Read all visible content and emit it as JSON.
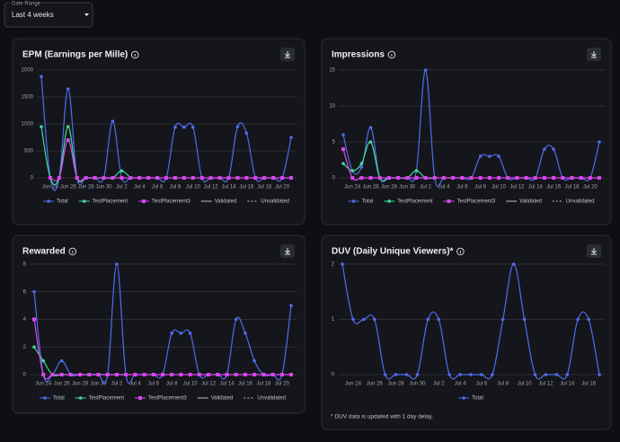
{
  "date_range": {
    "label": "Date Range",
    "value": "Last 4 weeks"
  },
  "chart_data": [
    {
      "type": "line",
      "title": "EPM (Earnings per Mille)",
      "categories": [
        null,
        "Jun 24",
        null,
        "Jun 26",
        null,
        "Jun 28",
        null,
        "Jun 30",
        null,
        "Jul 2",
        null,
        "Jul 4",
        null,
        "Jul 6",
        null,
        "Jul 8",
        null,
        "Jul 10",
        null,
        "Jul 12",
        null,
        "Jul 14",
        null,
        "Jul 16",
        null,
        "Jul 18",
        null,
        "Jul 20",
        null
      ],
      "series": [
        {
          "name": "Total",
          "color": "#4f6bed",
          "values": [
            1880,
            0,
            0,
            1650,
            0,
            0,
            0,
            0,
            1050,
            0,
            0,
            0,
            0,
            0,
            0,
            940,
            940,
            940,
            0,
            0,
            0,
            0,
            950,
            830,
            0,
            0,
            0,
            0,
            750
          ]
        },
        {
          "name": "TestPlacement",
          "color": "#3ddc97",
          "values": [
            950,
            0,
            0,
            950,
            0,
            0,
            0,
            0,
            0,
            130,
            0,
            null,
            null,
            null,
            null,
            null,
            null,
            null,
            null,
            null,
            null,
            null,
            null,
            null,
            null,
            null,
            null,
            null,
            null
          ]
        },
        {
          "name": "TestPlacement3",
          "color": "#d946ef",
          "values": [
            null,
            0,
            0,
            700,
            0,
            0,
            0,
            0,
            0,
            0,
            0,
            0,
            0,
            0,
            0,
            0,
            0,
            0,
            0,
            0,
            0,
            0,
            0,
            0,
            0,
            0,
            0,
            0,
            0
          ]
        }
      ],
      "line_styles": [
        "Validated",
        "Unvalidated"
      ],
      "ylim": [
        0,
        2000
      ],
      "yticks": [
        0,
        500,
        1000,
        1500,
        2000
      ],
      "grid": true
    },
    {
      "type": "line",
      "title": "Impressions",
      "categories": [
        null,
        "Jun 24",
        null,
        "Jun 26",
        null,
        "Jun 28",
        null,
        "Jun 30",
        null,
        "Jul 2",
        null,
        "Jul 4",
        null,
        "Jul 6",
        null,
        "Jul 8",
        null,
        "Jul 10",
        null,
        "Jul 12",
        null,
        "Jul 14",
        null,
        "Jul 16",
        null,
        "Jul 18",
        null,
        "Jul 20",
        null
      ],
      "series": [
        {
          "name": "Total",
          "color": "#4f6bed",
          "values": [
            6,
            1,
            1.5,
            7,
            0,
            0,
            0,
            0,
            1,
            15,
            0,
            0,
            0,
            0,
            0,
            3,
            3,
            3,
            0,
            0,
            0,
            0,
            4,
            4,
            0,
            0,
            0,
            0,
            5
          ]
        },
        {
          "name": "TestPlacement",
          "color": "#3ddc97",
          "values": [
            2,
            1,
            2,
            5,
            0,
            0,
            0,
            0,
            1,
            0,
            0,
            null,
            null,
            null,
            null,
            null,
            null,
            null,
            null,
            null,
            null,
            null,
            null,
            null,
            null,
            null,
            null,
            null,
            null
          ]
        },
        {
          "name": "TestPlacement3",
          "color": "#d946ef",
          "values": [
            4,
            0,
            0,
            0,
            0,
            0,
            0,
            0,
            0,
            0,
            0,
            0,
            0,
            0,
            0,
            0,
            0,
            0,
            0,
            0,
            0,
            0,
            0,
            0,
            0,
            0,
            0,
            0,
            0
          ]
        }
      ],
      "line_styles": [
        "Validated",
        "Unvalidated"
      ],
      "ylim": [
        0,
        15
      ],
      "yticks": [
        0,
        5,
        10,
        15
      ],
      "grid": true
    },
    {
      "type": "line",
      "title": "Rewarded",
      "categories": [
        null,
        "Jun 24",
        null,
        "Jun 26",
        null,
        "Jun 28",
        null,
        "Jun 30",
        null,
        "Jul 2",
        null,
        "Jul 4",
        null,
        "Jul 6",
        null,
        "Jul 8",
        null,
        "Jul 10",
        null,
        "Jul 12",
        null,
        "Jul 14",
        null,
        "Jul 16",
        null,
        "Jul 18",
        null,
        "Jul 20",
        null
      ],
      "series": [
        {
          "name": "Total",
          "color": "#4f6bed",
          "values": [
            6,
            0,
            0,
            1,
            0,
            0,
            0,
            0,
            0,
            8,
            0,
            0,
            0,
            0,
            0,
            3,
            3,
            3,
            0,
            0,
            0,
            0,
            4,
            3,
            1,
            0,
            0,
            0,
            5
          ]
        },
        {
          "name": "TestPlacement",
          "color": "#3ddc97",
          "values": [
            2,
            1,
            0,
            0,
            0,
            0,
            0,
            0,
            0,
            0,
            0,
            null,
            null,
            null,
            null,
            null,
            null,
            null,
            null,
            null,
            null,
            null,
            null,
            null,
            null,
            null,
            null,
            null,
            null
          ]
        },
        {
          "name": "TestPlacement3",
          "color": "#d946ef",
          "values": [
            4,
            0,
            0,
            0,
            0,
            0,
            0,
            0,
            0,
            0,
            0,
            0,
            0,
            0,
            0,
            0,
            0,
            0,
            0,
            0,
            0,
            0,
            0,
            0,
            0,
            0,
            0,
            0,
            0
          ]
        }
      ],
      "line_styles": [
        "Validated",
        "Unvalidated"
      ],
      "ylim": [
        0,
        8
      ],
      "yticks": [
        0,
        2,
        4,
        6,
        8
      ],
      "grid": true
    },
    {
      "type": "line",
      "title": "DUV (Daily Unique Viewers)*",
      "categories": [
        null,
        "Jun 24",
        null,
        "Jun 26",
        null,
        "Jun 28",
        null,
        "Jun 30",
        null,
        "Jul 2",
        null,
        "Jul 4",
        null,
        "Jul 6",
        null,
        "Jul 8",
        null,
        "Jul 10",
        null,
        "Jul 12",
        null,
        "Jul 14",
        null,
        "Jul 16",
        null
      ],
      "series": [
        {
          "name": "Total",
          "color": "#4f6bed",
          "values": [
            2,
            1,
            1,
            1,
            0,
            0,
            0,
            0,
            1,
            1,
            0,
            0,
            0,
            0,
            0,
            1,
            2,
            1,
            0,
            0,
            0,
            0,
            1,
            1,
            0
          ]
        }
      ],
      "ylim": [
        0,
        2
      ],
      "yticks": [
        0,
        1,
        2
      ],
      "grid": true,
      "note": "* DUV data is updated with 1 day delay."
    }
  ]
}
